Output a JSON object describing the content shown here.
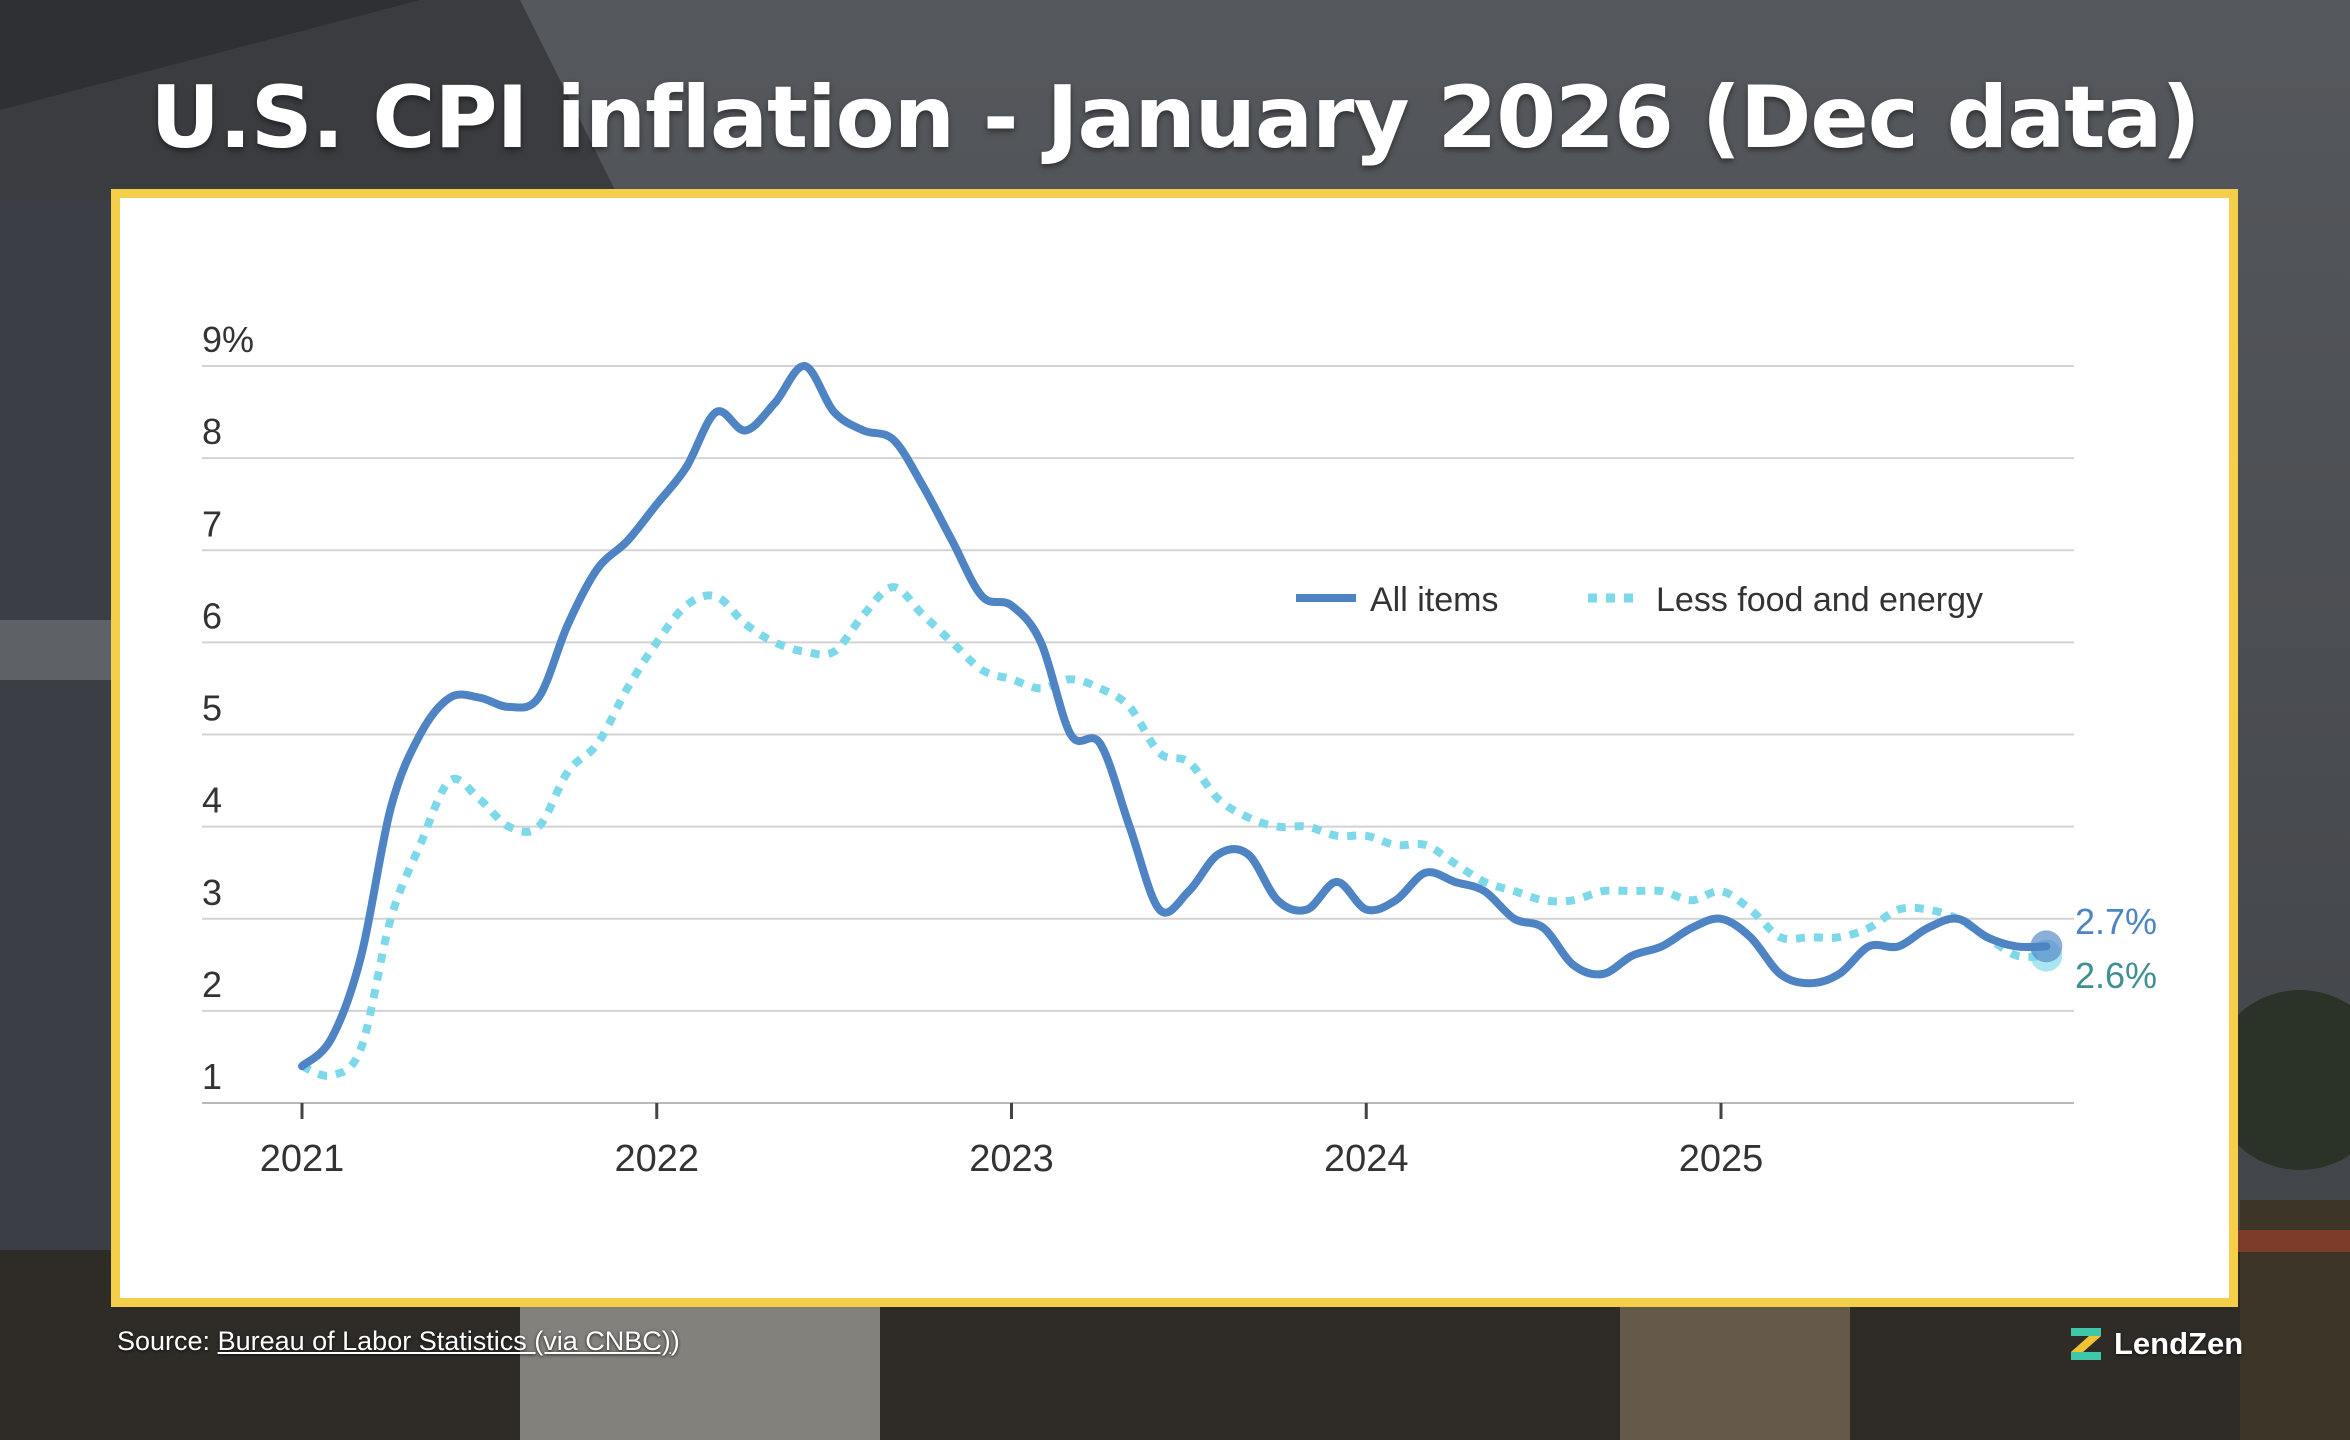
{
  "title": "U.S. CPI inflation - January 2026 (Dec data)",
  "source": {
    "prefix": "Source: ",
    "link_text": "Bureau of Labor Statistics (via CNBC)",
    "suffix": ")"
  },
  "brand": {
    "name": "LendZen",
    "icon": "lendzen-logo-icon"
  },
  "colors": {
    "frame": "#f6cf4a",
    "all_items": "#4e84c4",
    "less_food_energy": "#7dd9ea",
    "label_all": "#4e84c4",
    "label_core": "#3f8f93",
    "grid": "#d3d3d3",
    "text": "#333333"
  },
  "chart_data": {
    "type": "line",
    "title": "U.S. CPI inflation - January 2026 (Dec data)",
    "xlabel": "",
    "ylabel": "",
    "xlim": [
      2020.8,
      2026.08
    ],
    "ylim": [
      1,
      9
    ],
    "y_ticks": [
      1,
      2,
      3,
      4,
      5,
      6,
      7,
      8,
      9
    ],
    "y_tick_labels": [
      "1",
      "2",
      "3",
      "4",
      "5",
      "6",
      "7",
      "8",
      "9%"
    ],
    "x_ticks": [
      2021,
      2022,
      2023,
      2024,
      2025
    ],
    "x_tick_labels": [
      "2021",
      "2022",
      "2023",
      "2024",
      "2025"
    ],
    "grid": true,
    "legend": "top-right",
    "series": [
      {
        "name": "All items",
        "style": "solid",
        "end_label": "2.7%",
        "x": [
          2021.0,
          2021.083,
          2021.167,
          2021.25,
          2021.333,
          2021.417,
          2021.5,
          2021.583,
          2021.667,
          2021.75,
          2021.833,
          2021.917,
          2022.0,
          2022.083,
          2022.167,
          2022.25,
          2022.333,
          2022.417,
          2022.5,
          2022.583,
          2022.667,
          2022.75,
          2022.833,
          2022.917,
          2023.0,
          2023.083,
          2023.167,
          2023.25,
          2023.333,
          2023.417,
          2023.5,
          2023.583,
          2023.667,
          2023.75,
          2023.833,
          2023.917,
          2024.0,
          2024.083,
          2024.167,
          2024.25,
          2024.333,
          2024.417,
          2024.5,
          2024.583,
          2024.667,
          2024.75,
          2024.833,
          2024.917,
          2025.0,
          2025.083,
          2025.167,
          2025.25,
          2025.333,
          2025.417,
          2025.5,
          2025.583,
          2025.667,
          2025.75,
          2025.833,
          2025.917
        ],
        "values": [
          1.4,
          1.7,
          2.6,
          4.2,
          5.0,
          5.4,
          5.4,
          5.3,
          5.4,
          6.2,
          6.8,
          7.1,
          7.5,
          7.9,
          8.5,
          8.3,
          8.6,
          9.0,
          8.5,
          8.3,
          8.2,
          7.7,
          7.1,
          6.5,
          6.4,
          6.0,
          5.0,
          4.9,
          4.0,
          3.1,
          3.3,
          3.7,
          3.7,
          3.2,
          3.1,
          3.4,
          3.1,
          3.2,
          3.5,
          3.4,
          3.3,
          3.0,
          2.9,
          2.5,
          2.4,
          2.6,
          2.7,
          2.9,
          3.0,
          2.8,
          2.4,
          2.3,
          2.4,
          2.7,
          2.7,
          2.9,
          3.0,
          2.8,
          2.7,
          2.7
        ]
      },
      {
        "name": "Less food and energy",
        "style": "dotted",
        "end_label": "2.6%",
        "x": [
          2021.0,
          2021.083,
          2021.167,
          2021.25,
          2021.333,
          2021.417,
          2021.5,
          2021.583,
          2021.667,
          2021.75,
          2021.833,
          2021.917,
          2022.0,
          2022.083,
          2022.167,
          2022.25,
          2022.333,
          2022.417,
          2022.5,
          2022.583,
          2022.667,
          2022.75,
          2022.833,
          2022.917,
          2023.0,
          2023.083,
          2023.167,
          2023.25,
          2023.333,
          2023.417,
          2023.5,
          2023.583,
          2023.667,
          2023.75,
          2023.833,
          2023.917,
          2024.0,
          2024.083,
          2024.167,
          2024.25,
          2024.333,
          2024.417,
          2024.5,
          2024.583,
          2024.667,
          2024.75,
          2024.833,
          2024.917,
          2025.0,
          2025.083,
          2025.167,
          2025.25,
          2025.333,
          2025.417,
          2025.5,
          2025.583,
          2025.667,
          2025.75,
          2025.833,
          2025.917
        ],
        "values": [
          1.4,
          1.3,
          1.6,
          3.0,
          3.8,
          4.5,
          4.3,
          4.0,
          4.0,
          4.6,
          4.9,
          5.5,
          6.0,
          6.4,
          6.5,
          6.2,
          6.0,
          5.9,
          5.9,
          6.3,
          6.6,
          6.3,
          6.0,
          5.7,
          5.6,
          5.5,
          5.6,
          5.5,
          5.3,
          4.8,
          4.7,
          4.3,
          4.1,
          4.0,
          4.0,
          3.9,
          3.9,
          3.8,
          3.8,
          3.6,
          3.4,
          3.3,
          3.2,
          3.2,
          3.3,
          3.3,
          3.3,
          3.2,
          3.3,
          3.1,
          2.8,
          2.8,
          2.8,
          2.9,
          3.1,
          3.1,
          3.0,
          2.8,
          2.6,
          2.6
        ]
      }
    ]
  }
}
